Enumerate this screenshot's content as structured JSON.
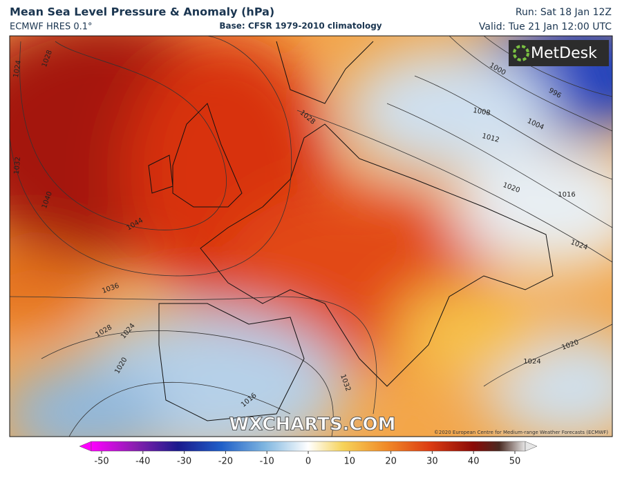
{
  "header": {
    "title": "Mean Sea Level Pressure & Anomaly (hPa)",
    "model": "ECMWF HRES 0.1°",
    "base": "Base: CFSR 1979-2010 climatology",
    "run": "Run: Sat 18 Jan 12Z",
    "valid": "Valid: Tue 21 Jan 12:00 UTC"
  },
  "logo": "MetDesk",
  "watermark": "WXCHARTS.COM",
  "copyright": "©2020 European Centre for Medium-range Weather Forecasts (ECMWF)",
  "map": {
    "isobar_labels": [
      1024,
      1028,
      1032,
      1040,
      1044,
      1036,
      1028,
      1024,
      1020,
      1016,
      1032,
      1028,
      1000,
      996,
      1008,
      1004,
      1012,
      1020,
      1016,
      1024,
      1024,
      1020
    ]
  },
  "colorbar": {
    "range": [
      -50,
      50
    ],
    "ticks": [
      -50,
      -40,
      -30,
      -20,
      -10,
      0,
      10,
      20,
      30,
      40,
      50
    ]
  }
}
